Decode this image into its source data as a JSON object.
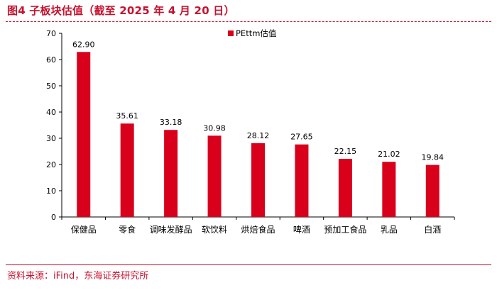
{
  "figure": {
    "title": "图4  子板块估值（截至 2025 年 4 月 20 日）",
    "source": "资料来源：iFind，东海证券研究所"
  },
  "colors": {
    "accent": "#c8102e",
    "bar": "#d9001b"
  },
  "chart_data": {
    "type": "bar",
    "title": "",
    "xlabel": "",
    "ylabel": "",
    "categories": [
      "保健品",
      "零食",
      "调味发酵品",
      "软饮料",
      "烘焙食品",
      "啤酒",
      "预加工食品",
      "乳品",
      "白酒"
    ],
    "series": [
      {
        "name": "PEttm估值",
        "values": [
          62.9,
          35.61,
          33.18,
          30.98,
          28.12,
          27.65,
          22.15,
          21.02,
          19.84
        ]
      }
    ],
    "data_labels": [
      "62.90",
      "35.61",
      "33.18",
      "30.98",
      "28.12",
      "27.65",
      "22.15",
      "21.02",
      "19.84"
    ],
    "ylim": [
      0,
      70
    ],
    "yticks": [
      0,
      10,
      20,
      30,
      40,
      50,
      60,
      70
    ],
    "grid": false,
    "legend_position": "top"
  }
}
